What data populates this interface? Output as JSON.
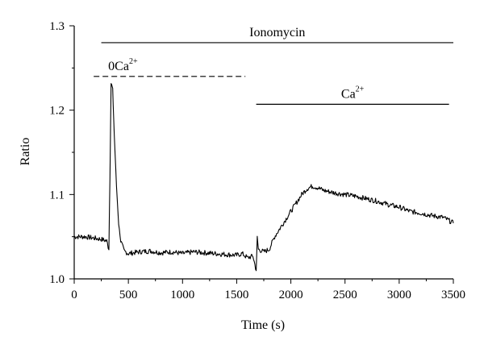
{
  "chart_data": {
    "type": "line",
    "xlabel": "Time (s)",
    "ylabel": "Ratio",
    "xlim": [
      0,
      3500
    ],
    "ylim": [
      1.0,
      1.3
    ],
    "xticks": [
      "0",
      "500",
      "1000",
      "1500",
      "2000",
      "2500",
      "3000",
      "3500"
    ],
    "yticks": [
      "1.0",
      "1.1",
      "1.2",
      "1.3"
    ],
    "line_color": "#000000",
    "series": [
      {
        "x": [
          0,
          100,
          200,
          250,
          300,
          320,
          330,
          340,
          355,
          370,
          390,
          410,
          430,
          460,
          500,
          600,
          700,
          800,
          900,
          1000,
          1100,
          1200,
          1300,
          1400,
          1500,
          1550,
          1600,
          1650,
          1680,
          1690,
          1700,
          1750,
          1800,
          1850,
          1900,
          1950,
          2000,
          2050,
          2100,
          2150,
          2200,
          2250,
          2300,
          2400,
          2500,
          2600,
          2700,
          2800,
          2900,
          3000,
          3100,
          3200,
          3300,
          3400,
          3450,
          3500
        ],
        "y": [
          1.05,
          1.05,
          1.048,
          1.047,
          1.045,
          1.035,
          1.12,
          1.232,
          1.225,
          1.17,
          1.11,
          1.065,
          1.045,
          1.033,
          1.03,
          1.032,
          1.033,
          1.031,
          1.032,
          1.03,
          1.032,
          1.031,
          1.03,
          1.029,
          1.028,
          1.03,
          1.025,
          1.027,
          1.01,
          1.05,
          1.035,
          1.032,
          1.035,
          1.05,
          1.06,
          1.07,
          1.08,
          1.09,
          1.1,
          1.107,
          1.11,
          1.108,
          1.105,
          1.102,
          1.1,
          1.098,
          1.095,
          1.092,
          1.088,
          1.085,
          1.08,
          1.078,
          1.075,
          1.073,
          1.07,
          1.066
        ]
      }
    ],
    "annotations": [
      {
        "label": "Ionomycin",
        "x_start": 250,
        "x_end": 3500,
        "y": 1.28,
        "style": "solid"
      },
      {
        "label": "0Ca",
        "superscript": "2+",
        "x_start": 180,
        "x_end": 1580,
        "y": 1.24,
        "style": "dashed"
      },
      {
        "label": "Ca",
        "superscript": "2+",
        "x_start": 1680,
        "x_end": 3460,
        "y": 1.207,
        "style": "solid"
      }
    ]
  }
}
